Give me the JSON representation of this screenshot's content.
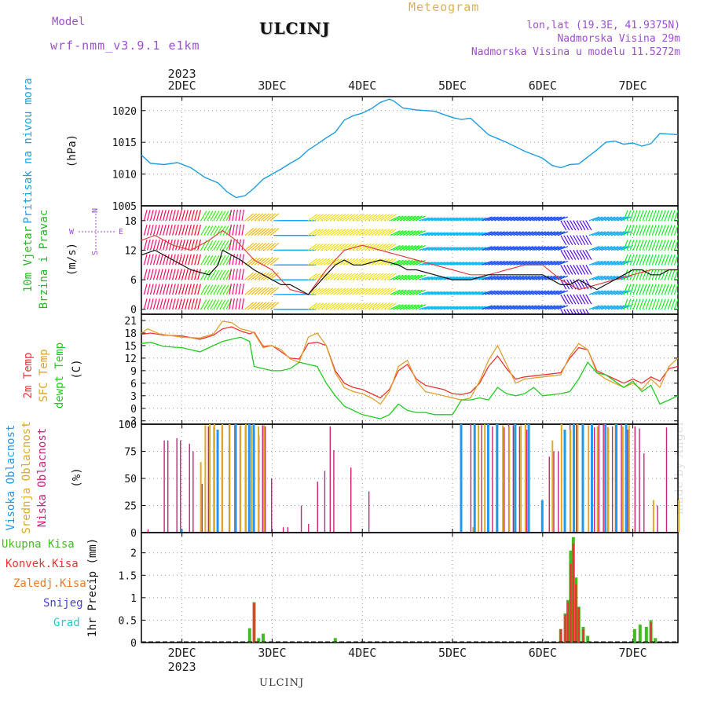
{
  "header": {
    "station": "ULCINJ",
    "meteogram_label": "Meteogram",
    "model_label": "Model",
    "model_name": "wrf-nmm_v3.9.1 e1km",
    "lonlat": "lon,lat (19.3E, 41.9375N)",
    "elevation": "Nadmorska Visina 29m",
    "model_elevation": "Nadmorska Visina u modelu 11.5272m"
  },
  "footer_station": "ULCINJ",
  "watermark": "made by Angel",
  "time_axis": {
    "year": "2023",
    "days": [
      "2DEC",
      "3DEC",
      "4DEC",
      "5DEC",
      "6DEC",
      "7DEC"
    ],
    "day_positions": [
      2,
      3,
      4,
      5,
      6,
      7
    ],
    "range": [
      1.55,
      7.5
    ]
  },
  "colors": {
    "pressure": "#1e9ee0",
    "temp2m": "#ee3333",
    "sfc": "#e0a030",
    "dewpt": "#22cc22",
    "cloud_high": "#2299ee",
    "cloud_mid": "#ddaa22",
    "cloud_low": "#cc2277",
    "precip_total": "#44bb22",
    "precip_conv": "#ee3333",
    "precip_frozen": "#ee7722",
    "precip_snow": "#4444dd",
    "precip_hail": "#22cccc"
  },
  "chart_data": [
    {
      "type": "line",
      "id": "pressure",
      "ylabel": "(hPa)",
      "side_label": "Pritisak na nivou mora",
      "ylim": [
        1005,
        1022.2
      ],
      "yticks": [
        1005,
        1010,
        1015,
        1020
      ],
      "grid": true,
      "series": [
        {
          "key": "pressure",
          "x": [
            1.55,
            1.65,
            1.8,
            1.95,
            2.1,
            2.25,
            2.4,
            2.5,
            2.6,
            2.7,
            2.8,
            2.9,
            3.0,
            3.1,
            3.2,
            3.3,
            3.4,
            3.5,
            3.6,
            3.7,
            3.8,
            3.9,
            4.0,
            4.1,
            4.2,
            4.3,
            4.35,
            4.45,
            4.6,
            4.8,
            5.0,
            5.1,
            5.2,
            5.4,
            5.6,
            5.8,
            6.0,
            6.1,
            6.2,
            6.3,
            6.4,
            6.5,
            6.6,
            6.7,
            6.8,
            6.9,
            7.0,
            7.1,
            7.2,
            7.3,
            7.4,
            7.5
          ],
          "values": [
            1013.0,
            1011.7,
            1011.5,
            1011.8,
            1011.0,
            1009.5,
            1008.6,
            1007.2,
            1006.3,
            1006.6,
            1007.8,
            1009.2,
            1010.0,
            1010.8,
            1011.7,
            1012.5,
            1013.8,
            1014.7,
            1015.7,
            1016.6,
            1018.5,
            1019.2,
            1019.6,
            1020.3,
            1021.3,
            1021.8,
            1021.5,
            1020.4,
            1020.1,
            1019.9,
            1018.9,
            1018.6,
            1018.8,
            1016.2,
            1015.0,
            1013.6,
            1012.5,
            1011.4,
            1011.0,
            1011.5,
            1011.6,
            1012.7,
            1013.8,
            1015.0,
            1015.2,
            1014.7,
            1014.9,
            1014.4,
            1014.8,
            1016.4,
            1016.3,
            1016.2
          ]
        }
      ]
    },
    {
      "type": "line",
      "id": "wind",
      "ylabel": "(m/s)",
      "side_label_1": "10m Vjetar",
      "side_label_2": "Brzina i Pravac",
      "compass": {
        "n": "N",
        "s": "S",
        "e": "E",
        "w": "W"
      },
      "ylim": [
        -1,
        21
      ],
      "yticks": [
        0,
        6,
        12,
        18
      ],
      "grid": true,
      "series": [
        {
          "key": "speed",
          "name": "",
          "x": [
            1.55,
            1.7,
            1.9,
            2.1,
            2.3,
            2.4,
            2.45,
            2.55,
            2.65,
            2.8,
            2.9,
            3.0,
            3.1,
            3.2,
            3.3,
            3.4,
            3.5,
            3.6,
            3.7,
            3.8,
            3.9,
            4.0,
            4.2,
            4.4,
            4.5,
            4.6,
            4.8,
            5.0,
            5.2,
            5.4,
            5.6,
            5.8,
            6.0,
            6.1,
            6.2,
            6.3,
            6.4,
            6.5,
            6.6,
            6.7,
            6.8,
            6.9,
            7.0,
            7.1,
            7.2,
            7.3,
            7.4,
            7.5
          ],
          "values": [
            11,
            12,
            10,
            8,
            7,
            9,
            12,
            11,
            10,
            8,
            7,
            6,
            5,
            5,
            4,
            3,
            5,
            7,
            9,
            10,
            9,
            9,
            10,
            9,
            8,
            8,
            7,
            6,
            6,
            7,
            7,
            7,
            7,
            6,
            5,
            5,
            6,
            5,
            4,
            5,
            6,
            7,
            8,
            8,
            7,
            7,
            8,
            8
          ]
        },
        {
          "key": "gust",
          "name": "",
          "x": [
            1.55,
            1.7,
            1.9,
            2.1,
            2.3,
            2.45,
            2.6,
            2.8,
            2.9,
            3.0,
            3.2,
            3.4,
            3.6,
            3.8,
            4.0,
            4.2,
            4.4,
            4.6,
            4.8,
            5.0,
            5.2,
            5.4,
            5.6,
            5.8,
            6.0,
            6.2,
            6.4,
            6.6,
            6.8,
            7.0,
            7.2,
            7.4,
            7.5
          ],
          "values": [
            14,
            15,
            13,
            12,
            14,
            16,
            14,
            10,
            9,
            8,
            4,
            3,
            8,
            12,
            13,
            12,
            11,
            10,
            9,
            8,
            7,
            7,
            8,
            9,
            9,
            6,
            4,
            5,
            6,
            7,
            8,
            8,
            8
          ]
        }
      ]
    },
    {
      "type": "line",
      "id": "temp",
      "ylabel": "(C)",
      "side_labels": [
        "2m Temp",
        "SFC Temp",
        "dewpt Temp"
      ],
      "ylim": [
        -3.8,
        22.5
      ],
      "yticks": [
        -3,
        0,
        3,
        6,
        9,
        12,
        15,
        18,
        21
      ],
      "grid": true,
      "series": [
        {
          "key": "temp2m",
          "x": [
            1.55,
            1.65,
            1.8,
            2.0,
            2.2,
            2.35,
            2.45,
            2.55,
            2.65,
            2.75,
            2.8,
            2.9,
            3.0,
            3.1,
            3.2,
            3.3,
            3.4,
            3.5,
            3.6,
            3.7,
            3.8,
            3.9,
            4.0,
            4.1,
            4.2,
            4.3,
            4.4,
            4.5,
            4.6,
            4.7,
            4.8,
            4.9,
            5.0,
            5.1,
            5.2,
            5.3,
            5.4,
            5.5,
            5.6,
            5.7,
            5.8,
            6.0,
            6.2,
            6.3,
            6.4,
            6.5,
            6.6,
            6.7,
            6.8,
            6.9,
            7.0,
            7.1,
            7.2,
            7.3,
            7.4,
            7.5
          ],
          "values": [
            17.7,
            18.0,
            17.5,
            17.3,
            16.5,
            17.5,
            19.0,
            19.5,
            18.5,
            17.8,
            18.2,
            14.8,
            15.0,
            13.5,
            12.0,
            11.8,
            15.5,
            15.8,
            15.0,
            9.0,
            6.0,
            5.0,
            4.5,
            3.5,
            2.5,
            4.5,
            9.0,
            10.5,
            7.0,
            5.5,
            5.0,
            4.5,
            3.5,
            3.3,
            3.8,
            6.0,
            10.0,
            12.5,
            9.5,
            7.0,
            7.5,
            8.0,
            8.5,
            12.0,
            14.5,
            14.0,
            9.0,
            8.0,
            7.0,
            6.0,
            7.0,
            6.0,
            7.5,
            6.5,
            9.5,
            10.0
          ]
        },
        {
          "key": "sfc",
          "x": [
            1.55,
            1.62,
            1.75,
            2.0,
            2.2,
            2.35,
            2.45,
            2.55,
            2.65,
            2.75,
            2.8,
            2.9,
            3.0,
            3.1,
            3.2,
            3.3,
            3.4,
            3.5,
            3.6,
            3.7,
            3.8,
            3.9,
            4.0,
            4.1,
            4.2,
            4.3,
            4.4,
            4.5,
            4.6,
            4.7,
            4.8,
            4.9,
            5.0,
            5.1,
            5.2,
            5.3,
            5.4,
            5.5,
            5.6,
            5.7,
            5.8,
            6.0,
            6.2,
            6.3,
            6.4,
            6.5,
            6.6,
            6.7,
            6.8,
            6.9,
            7.0,
            7.1,
            7.2,
            7.3,
            7.4,
            7.5
          ],
          "values": [
            18.0,
            19.0,
            17.8,
            17.0,
            16.8,
            17.8,
            20.8,
            20.5,
            19.0,
            18.5,
            18.0,
            14.5,
            15.0,
            14.0,
            11.8,
            11.0,
            17.0,
            18.0,
            15.0,
            8.5,
            5.0,
            4.0,
            3.5,
            2.5,
            1.0,
            4.0,
            10.0,
            11.5,
            6.5,
            4.0,
            3.5,
            3.0,
            2.5,
            2.0,
            2.5,
            6.5,
            11.5,
            15.0,
            10.5,
            6.0,
            7.0,
            7.5,
            8.0,
            12.5,
            15.5,
            14.0,
            8.5,
            7.0,
            6.0,
            5.0,
            6.0,
            4.5,
            7.0,
            5.0,
            10.0,
            12.0
          ]
        },
        {
          "key": "dewpt",
          "x": [
            1.55,
            1.65,
            1.8,
            2.0,
            2.2,
            2.35,
            2.45,
            2.55,
            2.65,
            2.75,
            2.8,
            2.9,
            3.0,
            3.1,
            3.2,
            3.3,
            3.4,
            3.5,
            3.6,
            3.7,
            3.8,
            3.9,
            4.0,
            4.1,
            4.2,
            4.3,
            4.4,
            4.5,
            4.6,
            4.7,
            4.8,
            4.9,
            5.0,
            5.1,
            5.2,
            5.3,
            5.4,
            5.5,
            5.6,
            5.7,
            5.8,
            5.9,
            6.0,
            6.2,
            6.3,
            6.4,
            6.5,
            6.6,
            6.7,
            6.8,
            6.9,
            7.0,
            7.1,
            7.2,
            7.3,
            7.4,
            7.5
          ],
          "values": [
            15.5,
            15.8,
            14.8,
            14.5,
            13.5,
            15.0,
            16.0,
            16.5,
            17.0,
            16.0,
            10.0,
            9.5,
            9.0,
            9.0,
            9.5,
            11.0,
            10.5,
            10.0,
            6.0,
            3.0,
            0.5,
            -0.5,
            -1.5,
            -2.0,
            -2.5,
            -1.5,
            1.0,
            -0.5,
            -1.0,
            -1.0,
            -1.5,
            -1.5,
            -1.5,
            2.0,
            2.0,
            2.5,
            2.0,
            5.0,
            3.5,
            3.0,
            3.5,
            5.0,
            3.0,
            3.5,
            4.0,
            7.0,
            11.0,
            8.5,
            8.0,
            6.5,
            5.0,
            6.5,
            4.0,
            5.5,
            1.0,
            2.0,
            3.0
          ]
        }
      ]
    },
    {
      "type": "bar",
      "id": "clouds",
      "ylabel": "(%)",
      "side_labels": [
        "Visoka Oblacnost",
        "Srednja Oblacnost",
        "Niska Oblacnost"
      ],
      "ylim": [
        0,
        100
      ],
      "yticks": [
        0,
        25,
        50,
        75,
        100
      ],
      "grid": true,
      "series": [
        {
          "key": "cloud_low",
          "x": [
            1.6,
            1.78,
            1.82,
            1.92,
            1.96,
            2.06,
            2.1,
            2.2,
            2.27,
            2.33,
            2.42,
            2.5,
            2.56,
            2.62,
            2.68,
            2.72,
            2.78,
            2.83,
            2.87,
            2.9,
            2.97,
            3.1,
            3.15,
            3.3,
            3.38,
            3.48,
            3.56,
            3.62,
            3.66,
            3.85,
            4.05,
            5.18,
            5.3,
            5.42,
            5.55,
            5.6,
            5.65,
            5.72,
            5.8,
            6.05,
            6.1,
            6.15,
            6.22,
            6.28,
            6.35,
            6.42,
            6.55,
            6.6,
            6.65,
            6.7,
            6.75,
            6.8,
            6.85,
            6.92,
            7.0,
            7.05,
            7.1,
            7.25,
            7.35
          ],
          "values": [
            3,
            85,
            85,
            87,
            85,
            82,
            75,
            45,
            98,
            98,
            98,
            99,
            99,
            98,
            98,
            99,
            95,
            90,
            99,
            98,
            50,
            5,
            5,
            25,
            8,
            47,
            57,
            98,
            76,
            60,
            38,
            100,
            100,
            98,
            97,
            100,
            99,
            98,
            95,
            70,
            75,
            75,
            70,
            100,
            100,
            100,
            97,
            100,
            100,
            97,
            98,
            100,
            100,
            95,
            98,
            96,
            73,
            25,
            97
          ]
        },
        {
          "key": "cloud_mid",
          "x": [
            2.2,
            2.25,
            2.3,
            2.35,
            2.44,
            2.52,
            2.58,
            2.64,
            2.7,
            2.76,
            2.84,
            2.9,
            5.15,
            5.22,
            5.28,
            5.35,
            5.48,
            5.55,
            5.62,
            5.68,
            5.75,
            5.8,
            6.1,
            6.2,
            6.3,
            6.38,
            6.5,
            6.6,
            6.72,
            6.8,
            6.88,
            6.95,
            7.22,
            7.5
          ],
          "values": [
            65,
            99,
            100,
            100,
            100,
            100,
            99,
            99,
            100,
            99,
            98,
            99,
            1,
            5,
            99,
            100,
            100,
            99,
            98,
            97,
            99,
            100,
            85,
            100,
            95,
            100,
            99,
            98,
            96,
            100,
            98,
            99,
            30,
            30
          ]
        },
        {
          "key": "cloud_high",
          "x": [
            2.0,
            2.4,
            2.6,
            2.75,
            2.8,
            5.1,
            5.25,
            5.4,
            5.5,
            5.7,
            5.85,
            6.0,
            6.25,
            6.35,
            6.45,
            6.55,
            6.7,
            6.82,
            6.93
          ],
          "values": [
            3,
            95,
            100,
            100,
            100,
            100,
            100,
            100,
            100,
            100,
            100,
            30,
            95,
            100,
            100,
            100,
            100,
            100,
            100
          ]
        }
      ]
    },
    {
      "type": "bar",
      "id": "precip",
      "ylabel": "1hr Precip (mm)",
      "side_labels": [
        "Ukupna Kisa",
        "Konvek.Kisa",
        "Zaledj.Kisa",
        "Snijeg",
        "Grad"
      ],
      "ylim": [
        0,
        2.45
      ],
      "yticks": [
        0,
        0.5,
        1,
        1.5,
        2
      ],
      "ytick_labels": [
        "0",
        "0.5",
        "1",
        "1.5",
        "2"
      ],
      "grid": true,
      "series": [
        {
          "key": "precip_total",
          "x": [
            2.75,
            2.8,
            2.85,
            2.9,
            3.7,
            6.2,
            6.25,
            6.28,
            6.31,
            6.34,
            6.37,
            6.4,
            6.45,
            6.5,
            7.02,
            7.08,
            7.15,
            7.2,
            7.25
          ],
          "values": [
            0.32,
            0.9,
            0.1,
            0.2,
            0.1,
            0.3,
            0.65,
            0.95,
            2.05,
            2.35,
            1.45,
            0.8,
            0.35,
            0.15,
            0.3,
            0.4,
            0.35,
            0.5,
            0.1
          ]
        },
        {
          "key": "precip_conv",
          "x": [
            2.8,
            6.2,
            6.25,
            6.28,
            6.31,
            6.34,
            6.37,
            6.4,
            6.45,
            7.2
          ],
          "values": [
            0.88,
            0.3,
            0.62,
            0.9,
            1.75,
            2.2,
            1.3,
            0.78,
            0.3,
            0.45
          ]
        }
      ]
    }
  ]
}
